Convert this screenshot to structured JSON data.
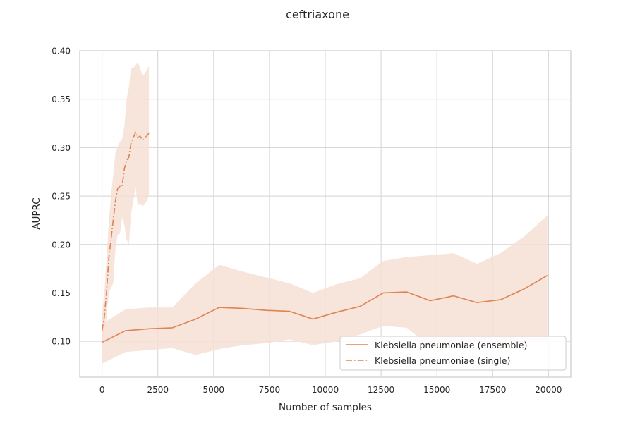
{
  "chart_data": {
    "type": "line",
    "title": "ceftriaxone",
    "xlabel": "Number of samples",
    "ylabel": "AUPRC",
    "xlim": [
      -1000,
      21000
    ],
    "ylim": [
      0.063,
      0.4
    ],
    "xticks": [
      0,
      2500,
      5000,
      7500,
      10000,
      12500,
      15000,
      17500,
      20000
    ],
    "yticks": [
      0.1,
      0.15,
      0.2,
      0.25,
      0.3,
      0.35,
      0.4
    ],
    "xtick_labels": [
      "0",
      "2500",
      "5000",
      "7500",
      "10000",
      "12500",
      "15000",
      "17500",
      "20000"
    ],
    "ytick_labels": [
      "0.10",
      "0.15",
      "0.20",
      "0.25",
      "0.30",
      "0.35",
      "0.40"
    ],
    "grid": true,
    "legend_position": "lower-right",
    "color": "#dd8452",
    "band_color": "#f6dfd3",
    "series": [
      {
        "name": "Klebsiella pneumoniae (ensemble)",
        "style": "solid",
        "x": [
          0,
          1050,
          2100,
          3150,
          4200,
          5250,
          6300,
          7350,
          8400,
          9450,
          10500,
          11550,
          12600,
          13650,
          14700,
          15750,
          16800,
          17850,
          18900,
          19950
        ],
        "y": [
          0.099,
          0.111,
          0.113,
          0.114,
          0.123,
          0.135,
          0.134,
          0.132,
          0.131,
          0.123,
          0.13,
          0.136,
          0.15,
          0.151,
          0.142,
          0.147,
          0.14,
          0.143,
          0.154,
          0.168
        ],
        "lower": [
          0.077,
          0.089,
          0.091,
          0.093,
          0.086,
          0.092,
          0.096,
          0.098,
          0.102,
          0.096,
          0.1,
          0.107,
          0.116,
          0.114,
          0.095,
          0.099,
          0.1,
          0.098,
          0.099,
          0.1
        ],
        "upper": [
          0.118,
          0.133,
          0.135,
          0.135,
          0.16,
          0.179,
          0.172,
          0.166,
          0.16,
          0.15,
          0.159,
          0.165,
          0.183,
          0.187,
          0.189,
          0.191,
          0.18,
          0.191,
          0.208,
          0.23
        ]
      },
      {
        "name": "Klebsiella pneumoniae (single)",
        "style": "dashdot",
        "x": [
          0,
          100,
          200,
          300,
          400,
          500,
          600,
          700,
          800,
          900,
          1000,
          1100,
          1200,
          1300,
          1400,
          1500,
          1600,
          1700,
          1800,
          1900,
          2000,
          2100
        ],
        "y": [
          0.111,
          0.125,
          0.15,
          0.185,
          0.205,
          0.225,
          0.245,
          0.258,
          0.26,
          0.26,
          0.278,
          0.287,
          0.29,
          0.305,
          0.31,
          0.316,
          0.31,
          0.312,
          0.308,
          0.309,
          0.312,
          0.315
        ],
        "lower": [
          0.097,
          0.11,
          0.125,
          0.15,
          0.155,
          0.16,
          0.195,
          0.21,
          0.211,
          0.228,
          0.22,
          0.205,
          0.2,
          0.232,
          0.245,
          0.26,
          0.24,
          0.242,
          0.24,
          0.241,
          0.245,
          0.25
        ],
        "upper": [
          0.126,
          0.15,
          0.185,
          0.222,
          0.25,
          0.272,
          0.295,
          0.301,
          0.306,
          0.309,
          0.322,
          0.35,
          0.362,
          0.383,
          0.382,
          0.385,
          0.388,
          0.383,
          0.375,
          0.376,
          0.38,
          0.384
        ]
      }
    ]
  }
}
